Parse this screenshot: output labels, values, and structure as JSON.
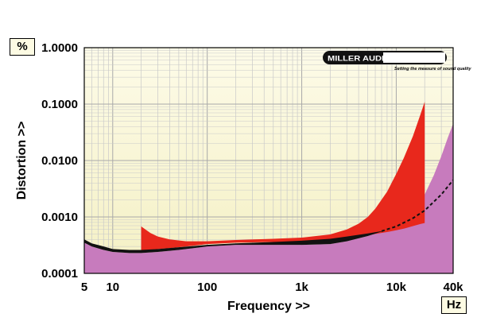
{
  "y_unit": "%",
  "x_unit": "Hz",
  "logo": {
    "name": "MILLER AUDIO RESEARCH",
    "tagline": "Setting the measure of sound quality"
  },
  "colors": {
    "plot_bg_top": "#fdfbe8",
    "plot_bg_bottom": "#f4f0c4",
    "series_red": "#e8281c",
    "series_black": "#111111",
    "series_pink": "#c77bbd",
    "grid": "#c9c9c9"
  },
  "chart_data": {
    "type": "area",
    "title": "",
    "xlabel": "Frequency >>",
    "ylabel": "Distortion >>",
    "x_scale": "log",
    "y_scale": "log",
    "xlim": [
      5,
      40000
    ],
    "ylim": [
      0.0001,
      1.0
    ],
    "x_ticks": [
      5,
      10,
      100,
      1000,
      10000,
      40000
    ],
    "x_tick_labels": [
      "5",
      "10",
      "100",
      "1k",
      "10k",
      "40k"
    ],
    "y_ticks": [
      0.0001,
      0.001,
      0.01,
      0.1,
      1.0
    ],
    "y_tick_labels": [
      "0.0001",
      "0.0010",
      "0.0100",
      "0.1000",
      "1.0000"
    ],
    "grid": true,
    "series": [
      {
        "style": "filled band",
        "color": "red",
        "x": [
          20,
          25,
          30,
          40,
          60,
          100,
          200,
          500,
          1000,
          2000,
          3000,
          4000,
          5000,
          6000,
          8000,
          10000,
          12000,
          15000,
          18000,
          20000
        ],
        "upper": [
          0.00068,
          0.00052,
          0.00045,
          0.0004,
          0.00037,
          0.00037,
          0.00039,
          0.00041,
          0.00043,
          0.00049,
          0.0006,
          0.00076,
          0.001,
          0.0014,
          0.0028,
          0.0058,
          0.011,
          0.027,
          0.065,
          0.11
        ],
        "lower": [
          0.00026,
          0.00026,
          0.00027,
          0.00028,
          0.0003,
          0.00033,
          0.00035,
          0.00036,
          0.00036,
          0.00037,
          0.0004,
          0.00043,
          0.00047,
          0.0005,
          0.00054,
          0.00058,
          0.00062,
          0.00069,
          0.00075,
          0.00078
        ]
      },
      {
        "style": "filled band",
        "color": "black",
        "x": [
          5,
          6,
          8,
          10,
          15,
          20,
          30,
          50,
          100,
          200,
          500,
          1000,
          2000,
          3000,
          5000,
          7000
        ],
        "upper": [
          0.0004,
          0.00034,
          0.0003,
          0.00027,
          0.00026,
          0.00026,
          0.00027,
          0.00029,
          0.00032,
          0.00034,
          0.00036,
          0.00038,
          0.00041,
          0.00045,
          0.00051,
          0.00056
        ],
        "lower": [
          0.00035,
          0.0003,
          0.00026,
          0.00024,
          0.00023,
          0.00023,
          0.00024,
          0.00026,
          0.0003,
          0.00032,
          0.00032,
          0.00032,
          0.00033,
          0.00037,
          0.00046,
          0.00055
        ]
      },
      {
        "style": "filled area",
        "color": "pink",
        "x": [
          5,
          6,
          8,
          10,
          15,
          20,
          30,
          50,
          100,
          200,
          500,
          1000,
          2000,
          3000,
          5000,
          7000,
          10000,
          15000,
          20000,
          25000,
          30000,
          35000,
          40000
        ],
        "values": [
          0.00035,
          0.0003,
          0.00026,
          0.00024,
          0.00023,
          0.00023,
          0.00024,
          0.00026,
          0.0003,
          0.00032,
          0.00032,
          0.00032,
          0.00033,
          0.00037,
          0.00046,
          0.00056,
          0.00075,
          0.0013,
          0.0025,
          0.0055,
          0.012,
          0.025,
          0.045
        ]
      },
      {
        "style": "dashed line",
        "color": "black",
        "x": [
          7000,
          10000,
          15000,
          20000,
          30000,
          40000
        ],
        "values": [
          0.00056,
          0.00068,
          0.00095,
          0.0013,
          0.0025,
          0.0045
        ]
      }
    ]
  }
}
